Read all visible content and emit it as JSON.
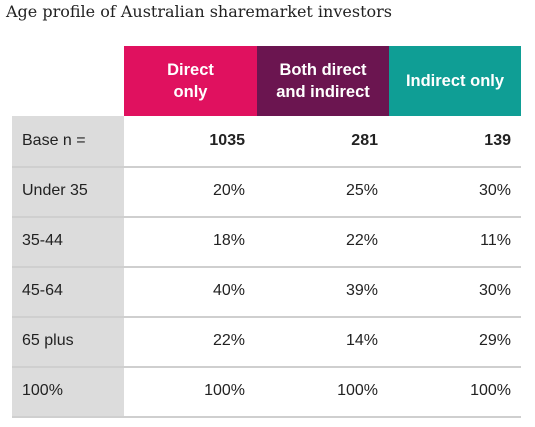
{
  "title": "Age profile of Australian sharemarket investors",
  "colors": {
    "direct": "#e0115f",
    "both": "#6b1550",
    "indirect": "#0f9e95",
    "label_column": "#dcdcdc",
    "divider": "#cfcfcf"
  },
  "chart_data": {
    "type": "table",
    "title": "Age profile of Australian sharemarket investors",
    "columns": [
      {
        "line1": "Direct",
        "line2": "only"
      },
      {
        "line1": "Both direct",
        "line2": "and indirect"
      },
      {
        "line1": "Indirect only",
        "line2": ""
      }
    ],
    "rows": [
      {
        "label": "Base n =",
        "values": [
          "1035",
          "281",
          "139"
        ]
      },
      {
        "label": "Under 35",
        "values": [
          "20%",
          "25%",
          "30%"
        ]
      },
      {
        "label": "35-44",
        "values": [
          "18%",
          "22%",
          "11%"
        ]
      },
      {
        "label": "45-64",
        "values": [
          "40%",
          "39%",
          "30%"
        ]
      },
      {
        "label": "65 plus",
        "values": [
          "22%",
          "14%",
          "29%"
        ]
      },
      {
        "label": "100%",
        "values": [
          "100%",
          "100%",
          "100%"
        ]
      }
    ]
  }
}
